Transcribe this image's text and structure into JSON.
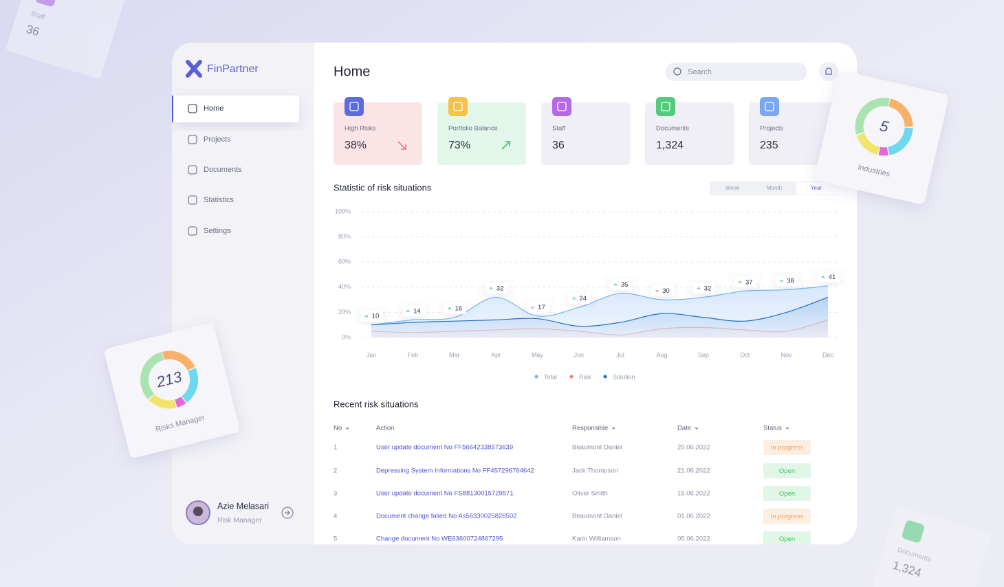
{
  "brand": "FinPartner",
  "nav": [
    "Home",
    "Projects",
    "Documents",
    "Statistics",
    "Settings"
  ],
  "selected_nav": 0,
  "user": {
    "name": "Azie Melasari",
    "role": "Risk Manager"
  },
  "header": {
    "title": "Home",
    "search": "Search"
  },
  "cards": [
    {
      "label": "High Risks",
      "value": "38%",
      "color": "#fbe4e6",
      "icon_color": "#5b6be0"
    },
    {
      "label": "Portfolio Balance",
      "value": "73%",
      "color": "#e3f6ea",
      "icon_color": "#f4c14a"
    },
    {
      "label": "Staff",
      "value": "36",
      "color": "#efeff5",
      "icon_color": "#b46ae6"
    },
    {
      "label": "Documents",
      "value": "1,324",
      "color": "#efeff5",
      "icon_color": "#52cb7b"
    },
    {
      "label": "Projects",
      "value": "235",
      "color": "#efeff5",
      "icon_color": "#7aa7f2"
    }
  ],
  "chart_data": {
    "type": "area",
    "title": "Statistic of risk situations",
    "periods": [
      "Week",
      "Month",
      "Year"
    ],
    "selected_period": 2,
    "categories": [
      "Jan",
      "Feb",
      "Mar",
      "Apr",
      "May",
      "Jun",
      "Jul",
      "Aug",
      "Sep",
      "Oct",
      "Nov",
      "Dec"
    ],
    "series": [
      {
        "name": "Total",
        "color": "#6fb5ee",
        "values": [
          10,
          14,
          16,
          32,
          17,
          24,
          35,
          30,
          32,
          37,
          38,
          41
        ]
      },
      {
        "name": "Risk",
        "color": "#f07a6e",
        "values": [
          5,
          4,
          5,
          6,
          7,
          5,
          2,
          7,
          8,
          6,
          5,
          14
        ]
      },
      {
        "name": "Solution",
        "color": "#1f6fc2",
        "values": [
          10,
          12,
          13,
          14,
          15,
          9,
          12,
          19,
          16,
          13,
          20,
          32
        ]
      }
    ],
    "ylim": [
      0,
      100
    ],
    "yticks": [
      {
        "value": 0,
        "label": "0%"
      },
      {
        "value": 20,
        "label": "20%"
      },
      {
        "value": 40,
        "label": "40%"
      },
      {
        "value": 60,
        "label": "60%"
      },
      {
        "value": 80,
        "label": "80%"
      },
      {
        "value": 100,
        "label": "100%"
      }
    ],
    "grid": true
  },
  "table": {
    "title": "Recent risk situations",
    "columns": [
      "No",
      "Action",
      "Responsible",
      "Date",
      "Status"
    ],
    "rows": [
      [
        "1",
        "User update document No FF56642338573639",
        "Beaumont Daniel",
        "20.06.2022",
        "In progress"
      ],
      [
        "2",
        "Depressing System Informations No FF457296764642",
        "Jack Thompson",
        "21.06.2022",
        "Open"
      ],
      [
        "3",
        "User update document No FS88130015729571",
        "Oliver Smith",
        "15.06.2022",
        "Open"
      ],
      [
        "4",
        "Document change falied No As56330025826502",
        "Beaumont Daniel",
        "01.06.2022",
        "In progress"
      ],
      [
        "5",
        "Change document No WE63600724867295",
        "Karin Williamson",
        "05.06.2022",
        "Open"
      ]
    ]
  },
  "floating_donuts": [
    {
      "value": "213",
      "label": "Risks Manager"
    },
    {
      "value": "5",
      "label": "Industries"
    }
  ],
  "floating_stats": [
    {
      "label": "Staff",
      "value": "36"
    },
    {
      "label": "Documents",
      "value": "1,324"
    }
  ]
}
